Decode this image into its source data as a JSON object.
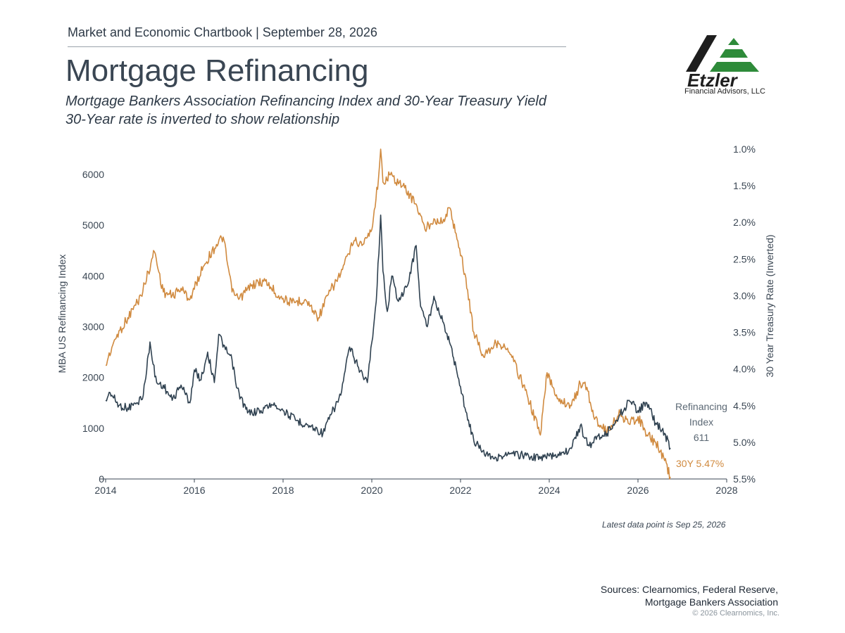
{
  "header": {
    "chartbook": "Market and Economic Chartbook | September 28, 2026",
    "title": "Mortgage Refinancing",
    "subtitle_1": "Mortgage Bankers Association Refinancing Index and 30-Year Treasury Yield",
    "subtitle_2": "30-Year rate is inverted to show relationship"
  },
  "logo": {
    "name": "Etzler",
    "tagline": "Financial Advisors, LLC",
    "icon": "etzler-mountain-logo",
    "colors": {
      "dark": "#1e1e1e",
      "accent": "#2e8b3a"
    }
  },
  "footer": {
    "latest_note": "Latest data point is Sep 25, 2026",
    "sources_1": "Sources: Clearnomics, Federal Reserve,",
    "sources_2": "Mortgage Bankers Association",
    "copyright": "© 2026 Clearnomics, Inc."
  },
  "chart_data": {
    "type": "line",
    "title": "",
    "xlabel": "",
    "ylabel": "MBA US Refinancing Index",
    "y2label": "30 Year Treasury Rate (Inverted)",
    "xlim": [
      2014,
      2028
    ],
    "ylim": [
      0,
      6500
    ],
    "y2lim": [
      1.0,
      5.5
    ],
    "y2_inverted": true,
    "grid": false,
    "x_ticks": [
      "2014",
      "2016",
      "2018",
      "2020",
      "2022",
      "2024",
      "2026",
      "2028"
    ],
    "y_ticks": [
      "0",
      "1000",
      "2000",
      "3000",
      "4000",
      "5000",
      "6000"
    ],
    "y2_ticks": [
      "1.0%",
      "1.5%",
      "2.0%",
      "2.5%",
      "3.0%",
      "3.5%",
      "4.0%",
      "4.5%",
      "5.0%",
      "5.5%"
    ],
    "colors": {
      "refi": "#2f4150",
      "treasury": "#d08a3f"
    },
    "series": [
      {
        "name": "Refinancing Index",
        "axis": "left",
        "label_lines": [
          "Refinancing",
          "Index",
          "611"
        ],
        "x": [
          2014.0,
          2014.1,
          2014.3,
          2014.5,
          2014.7,
          2014.85,
          2015.0,
          2015.05,
          2015.15,
          2015.3,
          2015.5,
          2015.7,
          2015.9,
          2016.0,
          2016.15,
          2016.3,
          2016.45,
          2016.55,
          2016.7,
          2016.85,
          2016.95,
          2017.2,
          2017.5,
          2017.8,
          2018.0,
          2018.3,
          2018.6,
          2018.9,
          2019.1,
          2019.3,
          2019.5,
          2019.7,
          2019.9,
          2020.1,
          2020.2,
          2020.25,
          2020.35,
          2020.45,
          2020.6,
          2020.8,
          2021.0,
          2021.1,
          2021.25,
          2021.4,
          2021.6,
          2021.75,
          2021.9,
          2022.1,
          2022.3,
          2022.5,
          2022.8,
          2023.0,
          2023.3,
          2023.6,
          2023.8,
          2024.0,
          2024.3,
          2024.5,
          2024.7,
          2024.8,
          2024.9,
          2025.1,
          2025.3,
          2025.5,
          2025.7,
          2025.8,
          2026.0,
          2026.2,
          2026.4,
          2026.6,
          2026.73
        ],
        "values": [
          1550,
          1700,
          1450,
          1400,
          1500,
          1650,
          2700,
          2350,
          1900,
          1850,
          1550,
          1850,
          1500,
          2150,
          1950,
          2500,
          1900,
          2850,
          2550,
          2350,
          1800,
          1300,
          1350,
          1500,
          1350,
          1150,
          1050,
          900,
          1300,
          1650,
          2600,
          2200,
          1900,
          3500,
          5200,
          4100,
          3300,
          4000,
          3500,
          3800,
          4600,
          3400,
          3000,
          3600,
          3100,
          2700,
          2200,
          1400,
          750,
          550,
          420,
          470,
          480,
          450,
          400,
          450,
          520,
          600,
          1050,
          800,
          650,
          850,
          900,
          1150,
          1400,
          1550,
          1350,
          1500,
          1100,
          900,
          611
        ]
      },
      {
        "name": "30Y",
        "axis": "right",
        "label": "30Y 5.47%",
        "x": [
          2014.0,
          2014.2,
          2014.5,
          2014.8,
          2015.1,
          2015.3,
          2015.5,
          2015.7,
          2015.9,
          2016.2,
          2016.5,
          2016.65,
          2016.85,
          2017.0,
          2017.3,
          2017.6,
          2017.9,
          2018.2,
          2018.5,
          2018.8,
          2019.0,
          2019.3,
          2019.6,
          2019.8,
          2020.0,
          2020.15,
          2020.2,
          2020.25,
          2020.4,
          2020.7,
          2021.0,
          2021.2,
          2021.4,
          2021.6,
          2021.75,
          2021.9,
          2022.1,
          2022.3,
          2022.5,
          2022.8,
          2023.0,
          2023.2,
          2023.5,
          2023.8,
          2023.95,
          2024.2,
          2024.5,
          2024.7,
          2024.85,
          2025.0,
          2025.3,
          2025.6,
          2025.8,
          2026.0,
          2026.2,
          2026.4,
          2026.6,
          2026.73
        ],
        "values": [
          3.95,
          3.6,
          3.3,
          3.0,
          2.4,
          2.95,
          3.0,
          2.9,
          3.05,
          2.6,
          2.3,
          2.2,
          2.95,
          3.05,
          2.85,
          2.8,
          3.0,
          3.1,
          3.05,
          3.3,
          3.0,
          2.7,
          2.25,
          2.3,
          2.1,
          1.4,
          1.0,
          1.45,
          1.35,
          1.5,
          1.75,
          2.1,
          1.95,
          2.0,
          1.8,
          2.15,
          2.7,
          3.5,
          3.8,
          3.65,
          3.7,
          3.9,
          4.35,
          4.9,
          4.05,
          4.4,
          4.5,
          4.2,
          4.25,
          4.65,
          4.85,
          4.6,
          4.75,
          4.65,
          4.9,
          5.0,
          5.25,
          5.47
        ]
      }
    ]
  }
}
